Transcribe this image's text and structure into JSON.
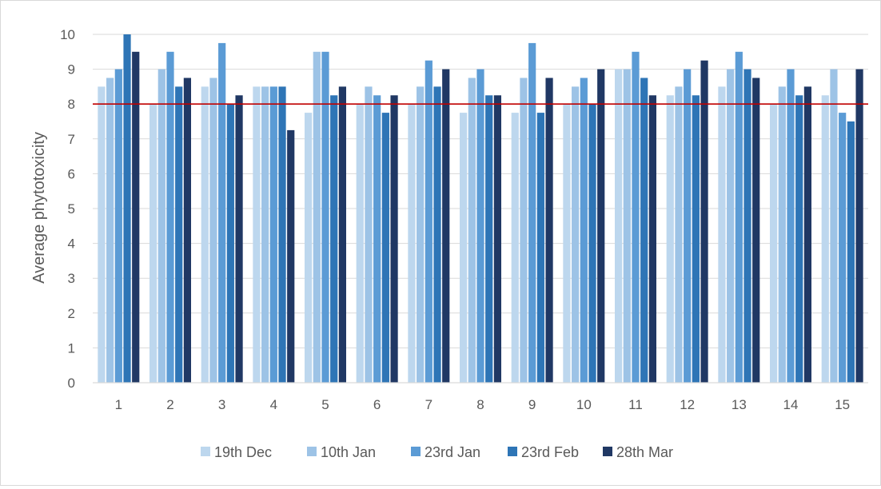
{
  "chart_data": {
    "type": "bar",
    "ylabel": "Average phytotoxicity",
    "xlabel": "",
    "ylim": [
      0,
      10
    ],
    "yticks": [
      0,
      1,
      2,
      3,
      4,
      5,
      6,
      7,
      8,
      9,
      10
    ],
    "grid": true,
    "legend": "bottom",
    "categories": [
      "1",
      "2",
      "3",
      "4",
      "5",
      "6",
      "7",
      "8",
      "9",
      "10",
      "11",
      "12",
      "13",
      "14",
      "15"
    ],
    "reference_line": {
      "value": 8,
      "color": "#c00000"
    },
    "series": [
      {
        "name": "19th Dec",
        "color": "#bdd7ee",
        "values": [
          8.5,
          8,
          8.5,
          8.5,
          7.75,
          8,
          8,
          7.75,
          7.75,
          8,
          9,
          8.25,
          8.5,
          8,
          8.25
        ]
      },
      {
        "name": "10th Jan",
        "color": "#9dc3e6",
        "values": [
          8.75,
          9,
          8.75,
          8.5,
          9.5,
          8.5,
          8.5,
          8.75,
          8.75,
          8.5,
          9,
          8.5,
          9,
          8.5,
          9
        ]
      },
      {
        "name": "23rd Jan",
        "color": "#5b9bd5",
        "values": [
          9,
          9.5,
          9.75,
          8.5,
          9.5,
          8.25,
          9.25,
          9,
          9.75,
          8.75,
          9.5,
          9,
          9.5,
          9,
          7.75
        ]
      },
      {
        "name": "23rd Feb",
        "color": "#2e75b6",
        "values": [
          10,
          8.5,
          8,
          8.5,
          8.25,
          7.75,
          8.5,
          8.25,
          7.75,
          8,
          8.75,
          8.25,
          9,
          8.25,
          7.5
        ]
      },
      {
        "name": "28th Mar",
        "color": "#203864",
        "values": [
          9.5,
          8.75,
          8.25,
          7.25,
          8.5,
          8.25,
          9,
          8.25,
          8.75,
          9,
          8.25,
          9.25,
          8.75,
          8.5,
          9
        ]
      }
    ]
  }
}
